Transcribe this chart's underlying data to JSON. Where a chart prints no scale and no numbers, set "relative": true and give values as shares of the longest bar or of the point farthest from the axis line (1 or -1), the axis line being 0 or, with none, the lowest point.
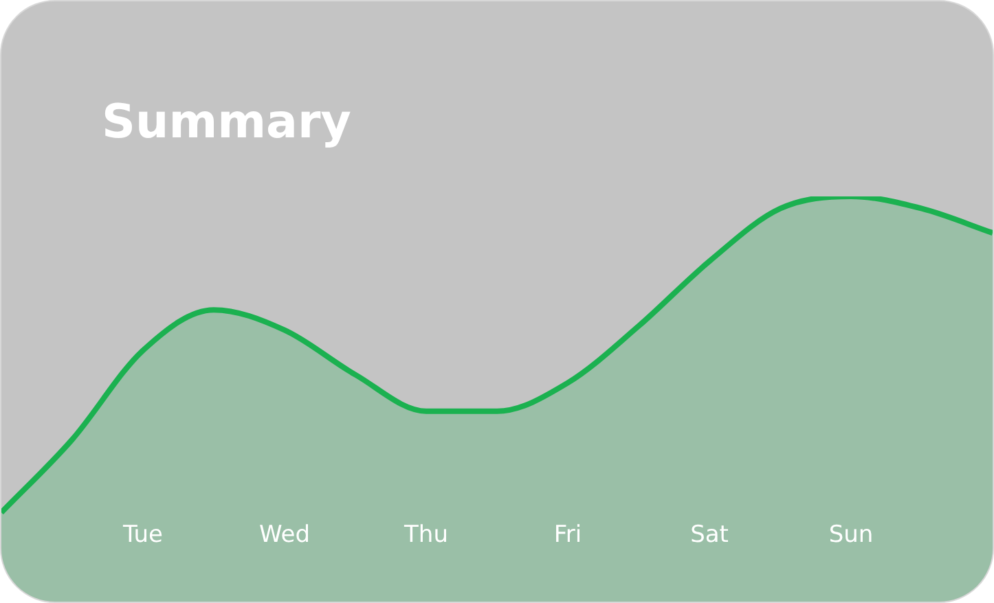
{
  "chart_data": {
    "type": "area",
    "title": "Summary",
    "relative": true,
    "categories": [
      null,
      null,
      "Tue",
      null,
      "Wed",
      null,
      "Thu",
      null,
      "Fri",
      null,
      "Sat",
      null,
      "Sun",
      null,
      null
    ],
    "series": [
      {
        "color": "#1bb150",
        "values": [
          0.22,
          0.4,
          0.62,
          0.72,
          0.67,
          0.56,
          0.47,
          0.47,
          0.54,
          0.68,
          0.84,
          0.97,
          1,
          0.97,
          0.91
        ]
      }
    ],
    "grid": false,
    "legend": false
  }
}
